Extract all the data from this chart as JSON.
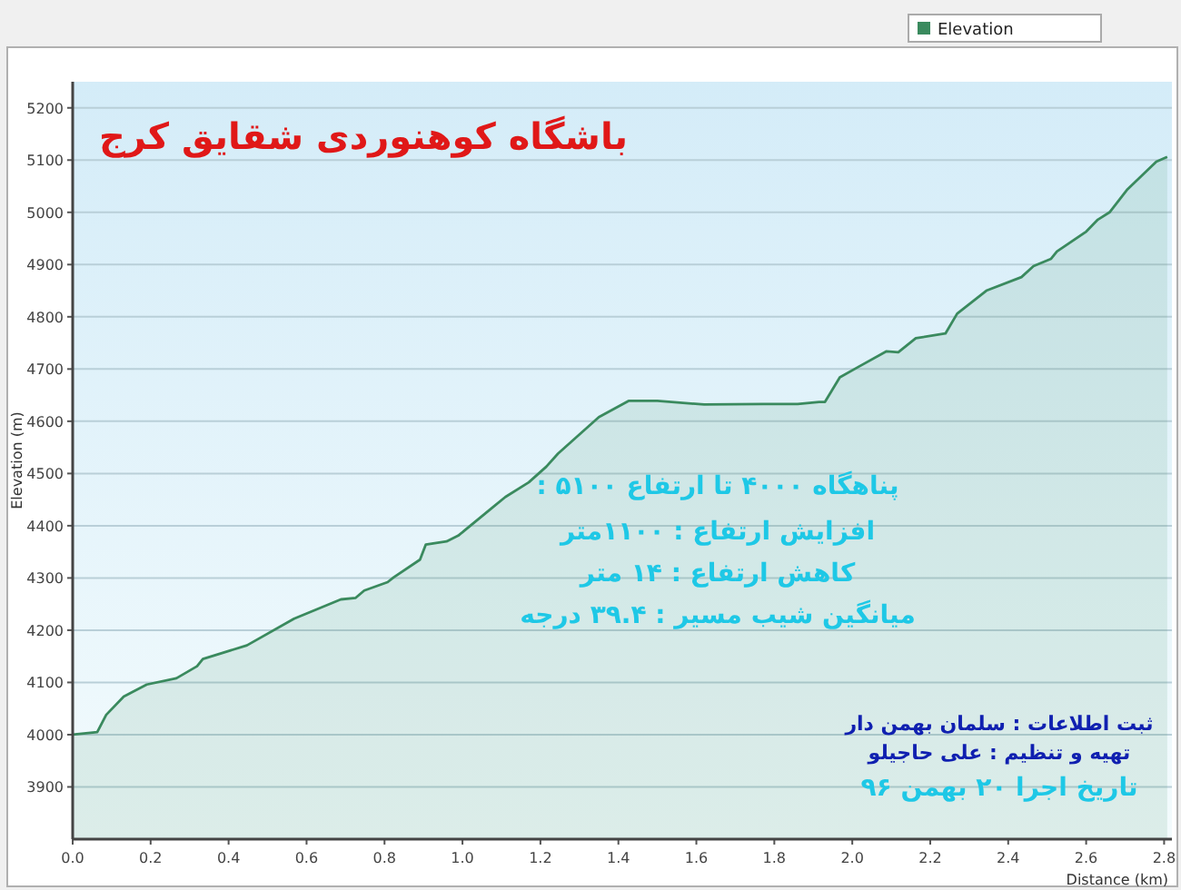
{
  "chart_data": {
    "type": "area",
    "title": "باشگاه کوهنوردی شقایق کرج",
    "xlabel": "Distance (km)",
    "ylabel": "Elevation (m)",
    "x": [
      0,
      0.063,
      0.086,
      0.131,
      0.19,
      0.266,
      0.319,
      0.334,
      0.447,
      0.568,
      0.688,
      0.726,
      0.748,
      0.808,
      0.823,
      0.891,
      0.906,
      0.959,
      0.989,
      1.079,
      1.11,
      1.17,
      1.215,
      1.245,
      1.35,
      1.426,
      1.5,
      1.62,
      1.772,
      1.86,
      1.915,
      1.93,
      1.968,
      2.013,
      2.088,
      2.118,
      2.163,
      2.239,
      2.269,
      2.344,
      2.434,
      2.465,
      2.51,
      2.525,
      2.6,
      2.63,
      2.66,
      2.706,
      2.78,
      2.808
    ],
    "series": [
      {
        "name": "Elevation",
        "color": "#3a8a5e",
        "values": [
          4000,
          4005,
          4038,
          4073,
          4096,
          4108,
          4131,
          4145,
          4171,
          4222,
          4259,
          4262,
          4276,
          4292,
          4301,
          4335,
          4364,
          4370,
          4381,
          4436,
          4455,
          4483,
          4513,
          4538,
          4608,
          4639,
          4639,
          4632,
          4633,
          4633,
          4637,
          4637,
          4684,
          4703,
          4734,
          4732,
          4759,
          4768,
          4806,
          4850,
          4876,
          4897,
          4911,
          4925,
          4963,
          4986,
          5000,
          5044,
          5097,
          5106
        ]
      }
    ],
    "xlim": [
      0,
      2.82
    ],
    "ylim": [
      3800,
      5250
    ],
    "xticks": [
      {
        "value": 0,
        "label": "0.0"
      },
      0.2,
      0.4,
      0.6,
      0.8,
      {
        "value": 1,
        "label": "1.0"
      },
      1.2,
      1.4,
      1.6,
      1.8,
      {
        "value": 2,
        "label": "2.0"
      },
      2.2,
      2.4,
      2.6,
      2.8
    ],
    "yticks": [
      3900,
      4000,
      4100,
      4200,
      4300,
      4400,
      4500,
      4600,
      4700,
      4800,
      4900,
      5000,
      5100,
      5200
    ],
    "grid": "y",
    "legend": "top right",
    "annotations": [
      "پناهگاه ۴۰۰۰ تا ارتفاع ۵۱۰۰ :",
      "افزایش ارتفاع : ۱۱۰۰متر",
      "کاهش ارتفاع : ۱۴ متر",
      "میانگین شیب مسیر : ۳۹.۴ درجه",
      "ثبت اطلاعات : سلمان بهمن دار",
      "تهیه و تنظیم : علی حاجیلو",
      "تاریخ اجرا ۲۰ بهمن ۹۶"
    ]
  }
}
